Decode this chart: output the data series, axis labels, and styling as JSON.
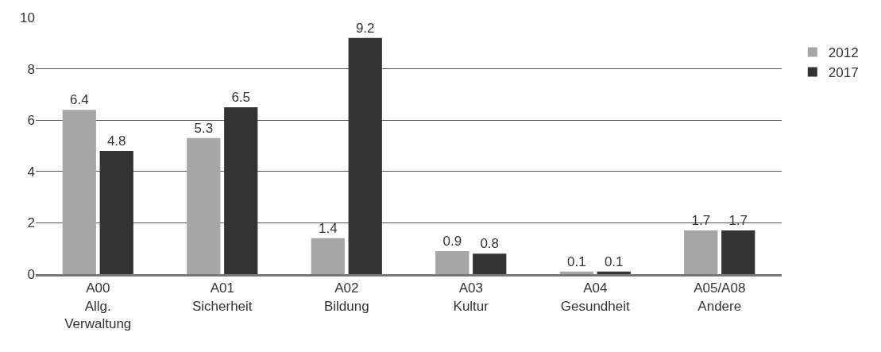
{
  "chart_data": {
    "type": "bar",
    "categories": [
      "A00\nAllg.\nVerwaltung",
      "A01\nSicherheit",
      "A02\nBildung",
      "A03\nKultur",
      "A04\nGesundheit",
      "A05/A08\nAndere"
    ],
    "series": [
      {
        "name": "2012",
        "color": "#a6a6a6",
        "values": [
          6.4,
          5.3,
          1.4,
          0.9,
          0.1,
          1.7
        ]
      },
      {
        "name": "2017",
        "color": "#333333",
        "values": [
          4.8,
          6.5,
          9.2,
          0.8,
          0.1,
          1.7
        ]
      }
    ],
    "ylim": [
      0,
      10
    ],
    "yticks": [
      0,
      2,
      4,
      6,
      8,
      10
    ],
    "grid": "y",
    "legend": "top right",
    "data_labels": true
  }
}
